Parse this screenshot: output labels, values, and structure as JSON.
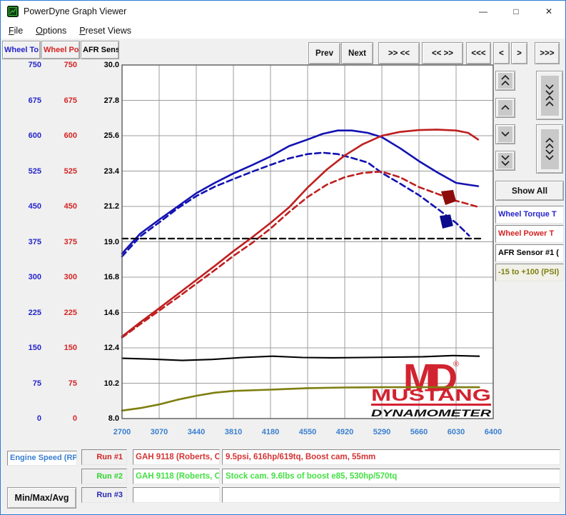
{
  "window": {
    "title": "PowerDyne Graph Viewer",
    "minimize_glyph": "—",
    "maximize_glyph": "□",
    "close_glyph": "✕"
  },
  "menu": {
    "items": [
      "File",
      "Options",
      "Preset Views"
    ]
  },
  "channel_tabs": [
    {
      "label": "Wheel To",
      "color": "#2424cc"
    },
    {
      "label": "Wheel Po",
      "color": "#d42424"
    },
    {
      "label": "AFR Sens",
      "color": "#000000"
    }
  ],
  "nav_buttons": [
    {
      "label": "Prev",
      "name": "prev"
    },
    {
      "label": "Next",
      "name": "next"
    },
    {
      "label": ">> <<",
      "name": "compress-horizontal"
    },
    {
      "label": "<< >>",
      "name": "expand-horizontal"
    },
    {
      "label": "<<<",
      "name": "pan-left-fast"
    },
    {
      "label": "<",
      "name": "pan-left"
    },
    {
      "label": ">",
      "name": "pan-right"
    },
    {
      "label": ">>>",
      "name": "pan-right-fast"
    }
  ],
  "right_controls": {
    "small_buttons": [
      {
        "name": "scale-up-fast",
        "icon": "chevron-double-up"
      },
      {
        "name": "scale-up",
        "icon": "chevron-up"
      },
      {
        "name": "scale-down",
        "icon": "chevron-down"
      },
      {
        "name": "scale-down-fast",
        "icon": "chevron-double-down"
      }
    ],
    "tall_buttons": [
      {
        "name": "compress-vertical",
        "icon": "chevrons-converge"
      },
      {
        "name": "expand-vertical",
        "icon": "chevrons-diverge"
      }
    ],
    "show_all_label": "Show All",
    "channels": [
      {
        "label": "Wheel Torque T",
        "color": "#2424cc",
        "bg": "#ffffff"
      },
      {
        "label": "Wheel Power T",
        "color": "#d42424",
        "bg": "#ffffff"
      },
      {
        "label": "AFR Sensor #1 (",
        "color": "#000000",
        "bg": "#ffffff"
      },
      {
        "label": "-15 to +100 (PSI)",
        "color": "#7e7e10",
        "bg": "#f1f1e9"
      }
    ]
  },
  "bottom": {
    "x_channel_label": "Engine Speed (RP",
    "x_channel_color": "#3a7fd0",
    "min_max_avg_label": "Min/Max/Avg",
    "runs": [
      {
        "label": "Run #1",
        "label_color": "#d42424",
        "vehicle": "GAH 9118 (Roberts, C",
        "vehicle_color": "#d43434",
        "note": "9.5psi, 616hp/619tq, Boost cam, 55mm",
        "note_color": "#d43434"
      },
      {
        "label": "Run #2",
        "label_color": "#2dd42d",
        "vehicle": "GAH 9118 (Roberts, C",
        "vehicle_color": "#44e044",
        "note": "Stock cam. 9.6lbs of boost e85, 530hp/570tq",
        "note_color": "#44e044"
      },
      {
        "label": "Run #3",
        "label_color": "#2828b4",
        "vehicle": "",
        "vehicle_color": "#000000",
        "note": "",
        "note_color": "#000000"
      }
    ]
  },
  "chart_data": {
    "type": "line",
    "title": "",
    "xlabel": "Engine Speed (RPM)",
    "grid": true,
    "x_axis": {
      "range": [
        2700,
        6400
      ],
      "ticks": [
        "2700",
        "3070",
        "3440",
        "3810",
        "4180",
        "4550",
        "4920",
        "5290",
        "5660",
        "6030",
        "6400"
      ],
      "tick_color": "#3a7fd0"
    },
    "y_axes": {
      "torque": {
        "range": [
          0,
          750
        ],
        "ticks": [
          "750",
          "675",
          "600",
          "525",
          "450",
          "375",
          "300",
          "225",
          "150",
          "75",
          "0"
        ],
        "color": "#2424cc"
      },
      "power": {
        "range": [
          0,
          750
        ],
        "ticks": [
          "750",
          "675",
          "600",
          "525",
          "450",
          "375",
          "300",
          "225",
          "150",
          "75",
          "0"
        ],
        "color": "#d42424"
      },
      "afr": {
        "range": [
          8,
          30
        ],
        "ticks": [
          "30.0",
          "27.8",
          "25.6",
          "23.4",
          "21.2",
          "19.0",
          "16.8",
          "14.6",
          "12.4",
          "10.2",
          "8.0"
        ],
        "color": "#000000"
      },
      "psi": {
        "range": [
          -15,
          100
        ],
        "ticks": [],
        "color": "#7e7e10"
      }
    },
    "series": [
      {
        "name": "Run 1 Wheel Torque",
        "axis": "torque",
        "color": "#1212b2",
        "dash": false,
        "width": 2.6,
        "x": [
          2700,
          2880,
          3070,
          3255,
          3440,
          3625,
          3810,
          4000,
          4180,
          4365,
          4550,
          4700,
          4850,
          4990,
          5150,
          5290,
          5475,
          5660,
          5845,
          6030,
          6150,
          6250
        ],
        "y": [
          350,
          392,
          422,
          450,
          478,
          500,
          520,
          538,
          556,
          578,
          592,
          604,
          611,
          611,
          606,
          597,
          573,
          546,
          522,
          500,
          496,
          493
        ]
      },
      {
        "name": "Run 2 Wheel Torque",
        "axis": "torque",
        "color": "#1212b2",
        "dash": true,
        "width": 2.6,
        "x": [
          2700,
          2880,
          3070,
          3255,
          3440,
          3625,
          3810,
          4000,
          4180,
          4365,
          4550,
          4700,
          4850,
          4990,
          5150,
          5290,
          5475,
          5660,
          5845,
          6030,
          6160
        ],
        "y": [
          344,
          386,
          416,
          446,
          472,
          492,
          508,
          524,
          538,
          552,
          561,
          564,
          561,
          553,
          543,
          521,
          498,
          474,
          445,
          415,
          388
        ]
      },
      {
        "name": "Run 1 Wheel Power",
        "axis": "power",
        "color": "#bf1f1f",
        "dash": false,
        "width": 2.6,
        "x": [
          2700,
          2880,
          3070,
          3255,
          3440,
          3625,
          3810,
          4000,
          4180,
          4365,
          4550,
          4740,
          4920,
          5100,
          5290,
          5470,
          5660,
          5840,
          6030,
          6150,
          6250
        ],
        "y": [
          174,
          204,
          234,
          264,
          294,
          324,
          355,
          385,
          415,
          448,
          490,
          528,
          558,
          582,
          600,
          608,
          612,
          613,
          611,
          606,
          592
        ]
      },
      {
        "name": "Run 2 Wheel Power",
        "axis": "power",
        "color": "#bf1f1f",
        "dash": true,
        "width": 2.6,
        "x": [
          2700,
          2880,
          3070,
          3255,
          3440,
          3625,
          3810,
          4000,
          4180,
          4365,
          4550,
          4740,
          4920,
          5100,
          5290,
          5470,
          5660,
          5840,
          6030,
          6150,
          6250
        ],
        "y": [
          172,
          200,
          229,
          257,
          286,
          315,
          345,
          373,
          403,
          438,
          470,
          496,
          512,
          521,
          524,
          512,
          491,
          477,
          462,
          455,
          449
        ]
      },
      {
        "name": "Run 1 AFR Sensor #1",
        "axis": "afr",
        "color": "#000000",
        "dash": false,
        "width": 2.1,
        "x": [
          2700,
          3000,
          3300,
          3600,
          3900,
          4200,
          4500,
          4800,
          5100,
          5400,
          5700,
          6000,
          6260
        ],
        "y": [
          11.75,
          11.7,
          11.62,
          11.68,
          11.8,
          11.88,
          11.8,
          11.78,
          11.8,
          11.82,
          11.85,
          11.92,
          11.88
        ]
      },
      {
        "name": "Run 2 AFR Sensor #1",
        "axis": "afr",
        "color": "#000000",
        "dash": true,
        "width": 2.3,
        "x": [
          2700,
          6280
        ],
        "y": [
          19.2,
          19.2
        ]
      },
      {
        "name": "Boost Pressure (PSI)",
        "axis": "psi",
        "color": "#7e7e10",
        "dash": false,
        "width": 2.6,
        "x": [
          2700,
          2900,
          3070,
          3250,
          3440,
          3620,
          3810,
          4180,
          4550,
          4920,
          5290,
          5660,
          6030,
          6260
        ],
        "y": [
          -12.4,
          -11.5,
          -10.4,
          -8.9,
          -7.6,
          -6.6,
          -6.0,
          -5.6,
          -5.1,
          -4.9,
          -4.8,
          -4.8,
          -4.8,
          -4.8
        ]
      }
    ],
    "annotations": [
      {
        "type": "scribble",
        "color": "#8e0b0b",
        "axis": "power",
        "points": [
          [
            5880,
            482
          ],
          [
            6001,
            485
          ],
          [
            6030,
            461
          ],
          [
            5923,
            453
          ]
        ]
      },
      {
        "type": "scribble",
        "color": "#0b0b8e",
        "axis": "torque",
        "points": [
          [
            5866,
            430
          ],
          [
            5973,
            433
          ],
          [
            6001,
            409
          ],
          [
            5895,
            403
          ]
        ]
      }
    ],
    "watermark": {
      "monogram": "MD",
      "registered": "®",
      "title": "MUSTANG",
      "subtitle": "DYNAMOMETER",
      "color": "#d22330",
      "subtitle_color": "#111111"
    }
  }
}
